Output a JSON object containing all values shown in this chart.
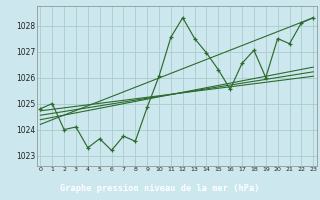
{
  "title": "Graphe pression niveau de la mer (hPa)",
  "background_color": "#cce8ee",
  "grid_color": "#aacccc",
  "line_color": "#2d6a2d",
  "label_bg": "#4a7a6a",
  "label_fg": "#ffffff",
  "x_values": [
    0,
    1,
    2,
    3,
    4,
    5,
    6,
    7,
    8,
    9,
    10,
    11,
    12,
    13,
    14,
    15,
    16,
    17,
    18,
    19,
    20,
    21,
    22,
    23
  ],
  "y_main": [
    1024.8,
    1025.0,
    1024.0,
    1024.1,
    1023.3,
    1023.65,
    1023.2,
    1023.75,
    1023.55,
    1024.85,
    1026.05,
    1027.55,
    1028.3,
    1027.5,
    1026.95,
    1026.3,
    1025.55,
    1026.55,
    1027.05,
    1026.0,
    1027.5,
    1027.3,
    1028.1,
    1028.3
  ],
  "ylim": [
    1022.6,
    1028.75
  ],
  "xlim": [
    -0.3,
    23.3
  ],
  "yticks": [
    1023,
    1024,
    1025,
    1026,
    1027,
    1028
  ],
  "xticks": [
    0,
    1,
    2,
    3,
    4,
    5,
    6,
    7,
    8,
    9,
    10,
    11,
    12,
    13,
    14,
    15,
    16,
    17,
    18,
    19,
    20,
    21,
    22,
    23
  ],
  "trend_lines": [
    [
      1024.72,
      1026.05
    ],
    [
      1024.55,
      1026.22
    ],
    [
      1024.38,
      1026.4
    ],
    [
      1024.2,
      1028.3
    ]
  ]
}
